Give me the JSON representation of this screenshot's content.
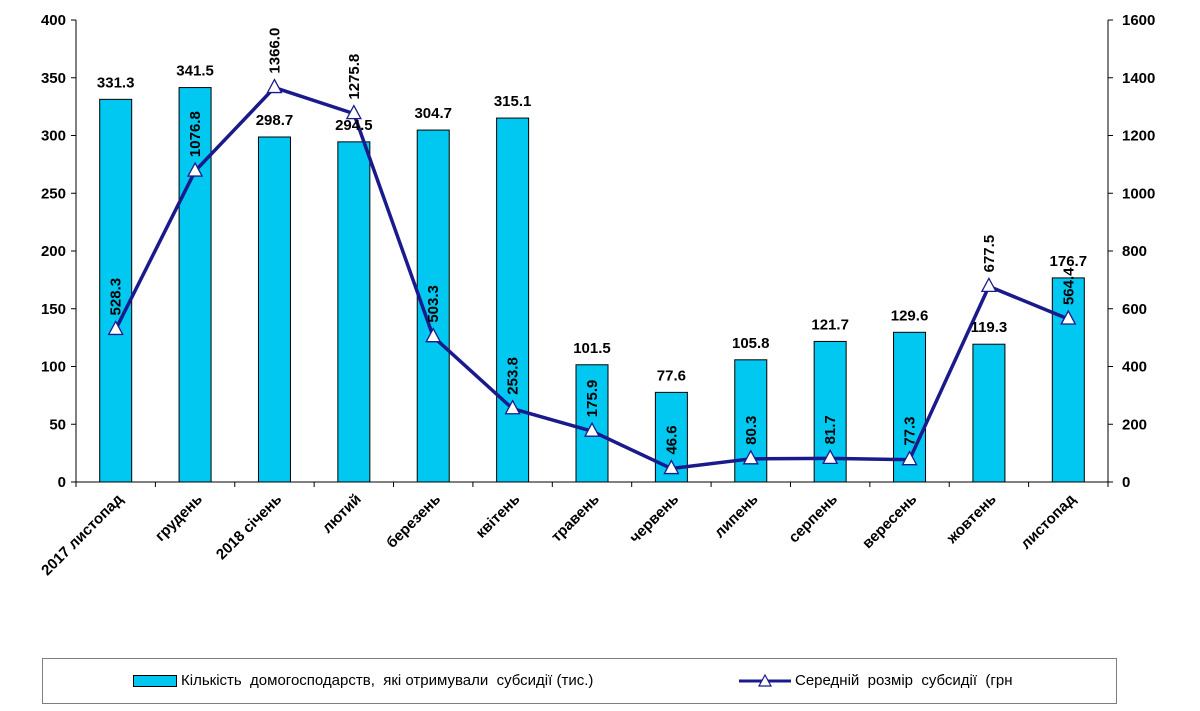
{
  "chart_data": {
    "type": "bar",
    "categories": [
      "2017 листопад",
      "грудень",
      "2018 січень",
      "лютий",
      "березень",
      "квітень",
      "травень",
      "червень",
      "липень",
      "серпень",
      "вересень",
      "жовтень",
      "листопад"
    ],
    "series": [
      {
        "name": "Кількість  домогосподарств,  які отримували  субсидії (тис.)",
        "type": "bar",
        "axis": "left",
        "color": "#00c8f0",
        "values": [
          331.3,
          341.5,
          298.7,
          294.5,
          304.7,
          315.1,
          101.5,
          77.6,
          105.8,
          121.7,
          129.6,
          119.3,
          176.7
        ],
        "labels": [
          "331.3",
          "341.5",
          "298.7",
          "294.5",
          "304.7",
          "315.1",
          "101.5",
          "77.6",
          "105.8",
          "121.7",
          "129.6",
          "119.3",
          "176.7"
        ]
      },
      {
        "name": "Середній  розмір  субсидії  (грн",
        "type": "line",
        "axis": "right",
        "color": "#1a1a8c",
        "marker": "triangle",
        "values": [
          528.3,
          1076.8,
          1366.0,
          1275.8,
          503.3,
          253.8,
          175.9,
          46.6,
          80.3,
          81.7,
          77.3,
          677.5,
          564.4
        ],
        "labels": [
          "528.3",
          "1076.8",
          "1366.0",
          "1275.8",
          "503.3",
          "253.8",
          "175.9",
          "46.6",
          "80.3",
          "81.7",
          "77.3",
          "677.5",
          "564.4"
        ]
      }
    ],
    "ylim": [
      0,
      400
    ],
    "yticks": [
      "0",
      "50",
      "100",
      "150",
      "200",
      "250",
      "300",
      "350",
      "400"
    ],
    "y2lim": [
      0,
      1600
    ],
    "y2ticks": [
      "0",
      "200",
      "400",
      "600",
      "800",
      "1000",
      "1200",
      "1400",
      "1600"
    ],
    "grid": false,
    "legend_position": "bottom"
  },
  "legend": {
    "bar_label": "Кількість  домогосподарств,  які отримували  субсидії (тис.)",
    "line_label": "Середній  розмір  субсидії  (грн"
  }
}
